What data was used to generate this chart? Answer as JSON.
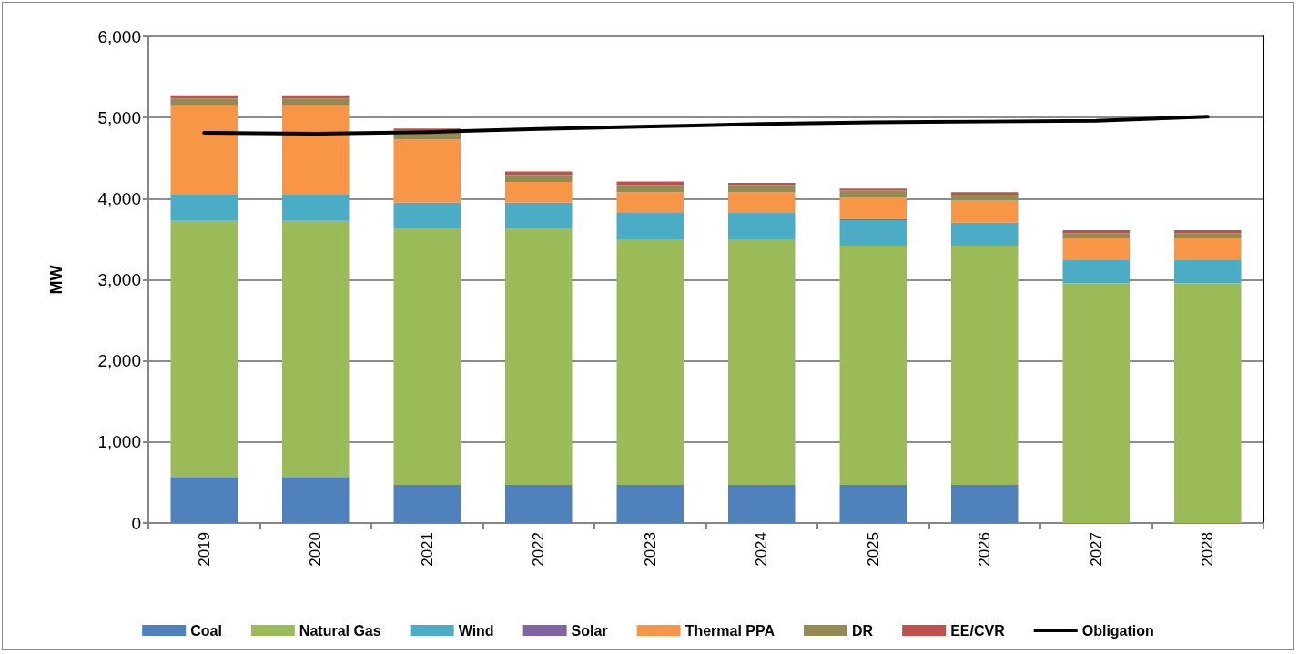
{
  "chart_data": {
    "type": "bar",
    "stacked": true,
    "ylabel": "MW",
    "categories": [
      "2019",
      "2020",
      "2021",
      "2022",
      "2023",
      "2024",
      "2025",
      "2026",
      "2027",
      "2028"
    ],
    "ylim": [
      0,
      6000
    ],
    "yticks": [
      {
        "value": 0,
        "label": "0"
      },
      {
        "value": 1000,
        "label": "1,000"
      },
      {
        "value": 2000,
        "label": "2,000"
      },
      {
        "value": 3000,
        "label": "3,000"
      },
      {
        "value": 4000,
        "label": "4,000"
      },
      {
        "value": 5000,
        "label": "5,000"
      },
      {
        "value": 6000,
        "label": "6,000"
      }
    ],
    "grid": "y",
    "legend": "bottom",
    "marker": "none",
    "series": [
      {
        "name": "Coal",
        "color": "#4f81bd",
        "values": [
          570,
          570,
          470,
          470,
          470,
          470,
          470,
          470,
          0,
          0
        ]
      },
      {
        "name": "Natural Gas",
        "color": "#9bbb59",
        "values": [
          3155,
          3155,
          3155,
          3155,
          3030,
          3030,
          2950,
          2950,
          2955,
          2955
        ]
      },
      {
        "name": "Wind",
        "color": "#4bacc6",
        "values": [
          325,
          325,
          325,
          325,
          325,
          325,
          315,
          285,
          285,
          285
        ]
      },
      {
        "name": "Solar",
        "color": "#8064a2",
        "values": [
          0,
          0,
          0,
          0,
          0,
          0,
          15,
          0,
          0,
          0
        ]
      },
      {
        "name": "Thermal PPA",
        "color": "#f79646",
        "values": [
          1100,
          1100,
          780,
          255,
          255,
          255,
          260,
          270,
          270,
          270
        ]
      },
      {
        "name": "DR",
        "color": "#948a54",
        "values": [
          85,
          85,
          110,
          85,
          85,
          85,
          90,
          75,
          65,
          65
        ]
      },
      {
        "name": "EE/CVR",
        "color": "#c0504d",
        "values": [
          40,
          40,
          25,
          45,
          45,
          30,
          25,
          30,
          35,
          35
        ]
      },
      {
        "name": "Obligation",
        "type": "line",
        "color": "#000000",
        "line_style": "solid",
        "values": [
          4810,
          4800,
          4820,
          4860,
          4890,
          4920,
          4940,
          4950,
          4960,
          5010
        ]
      }
    ]
  }
}
